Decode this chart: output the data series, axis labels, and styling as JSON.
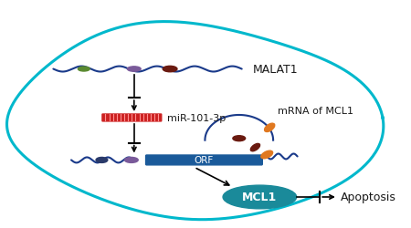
{
  "bg_color": "#ffffff",
  "cell_outline_color": "#00b8cc",
  "malat1_label": "MALAT1",
  "mir_label": "miR-101-3p",
  "mrna_label": "mRNA of MCL1",
  "orf_label": "ORF",
  "mcl1_label": "MCL1",
  "apoptosis_label": "Apoptosis",
  "line_color": "#1a3a8a",
  "orf_color": "#1a5a9a",
  "orange_segment": "#e07820",
  "dark_red_segment": "#6a1a10",
  "purple_segment": "#7a5a9a",
  "green_segment": "#5a8a30",
  "dark_blue_dot": "#2a3a6a",
  "mcl1_fill": "#1a8a9a",
  "mcl1_text_color": "#ffffff",
  "red_strip_color": "#cc2020",
  "red_hatch_color": "#ff9090",
  "text_color": "#1a1a1a"
}
